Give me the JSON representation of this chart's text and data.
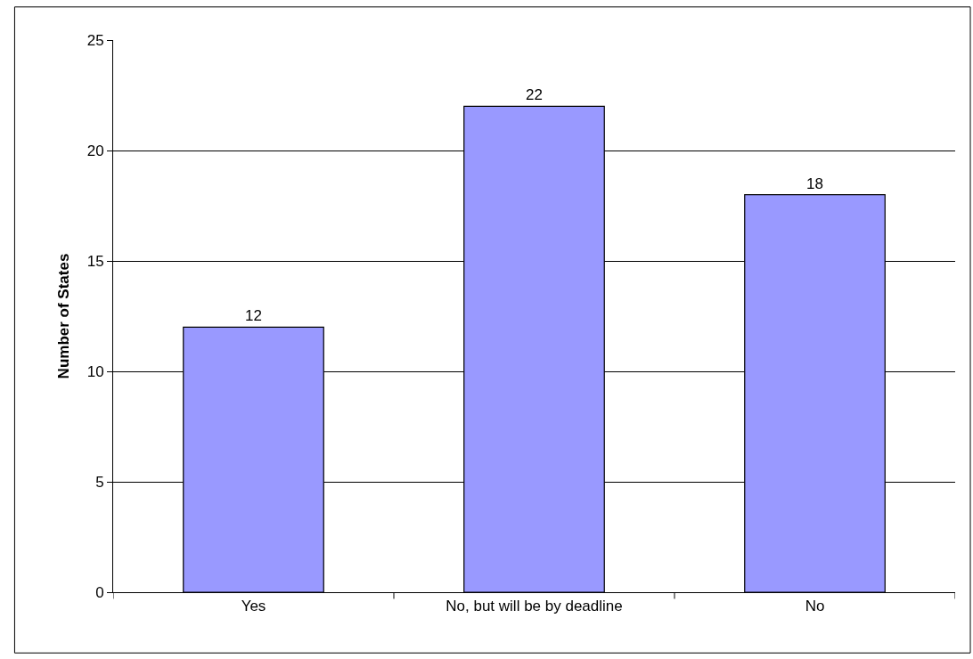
{
  "chart_data": {
    "type": "bar",
    "ylabel": "Number of States",
    "categories": [
      "Yes",
      "No, but will be by deadline",
      "No"
    ],
    "series": [
      {
        "color": "#9999ff",
        "values": [
          12,
          22,
          18
        ]
      }
    ],
    "ylim": [
      0,
      25
    ],
    "yticks": [
      0,
      5,
      10,
      15,
      20,
      25
    ],
    "grid": "y",
    "data_labels": true
  }
}
